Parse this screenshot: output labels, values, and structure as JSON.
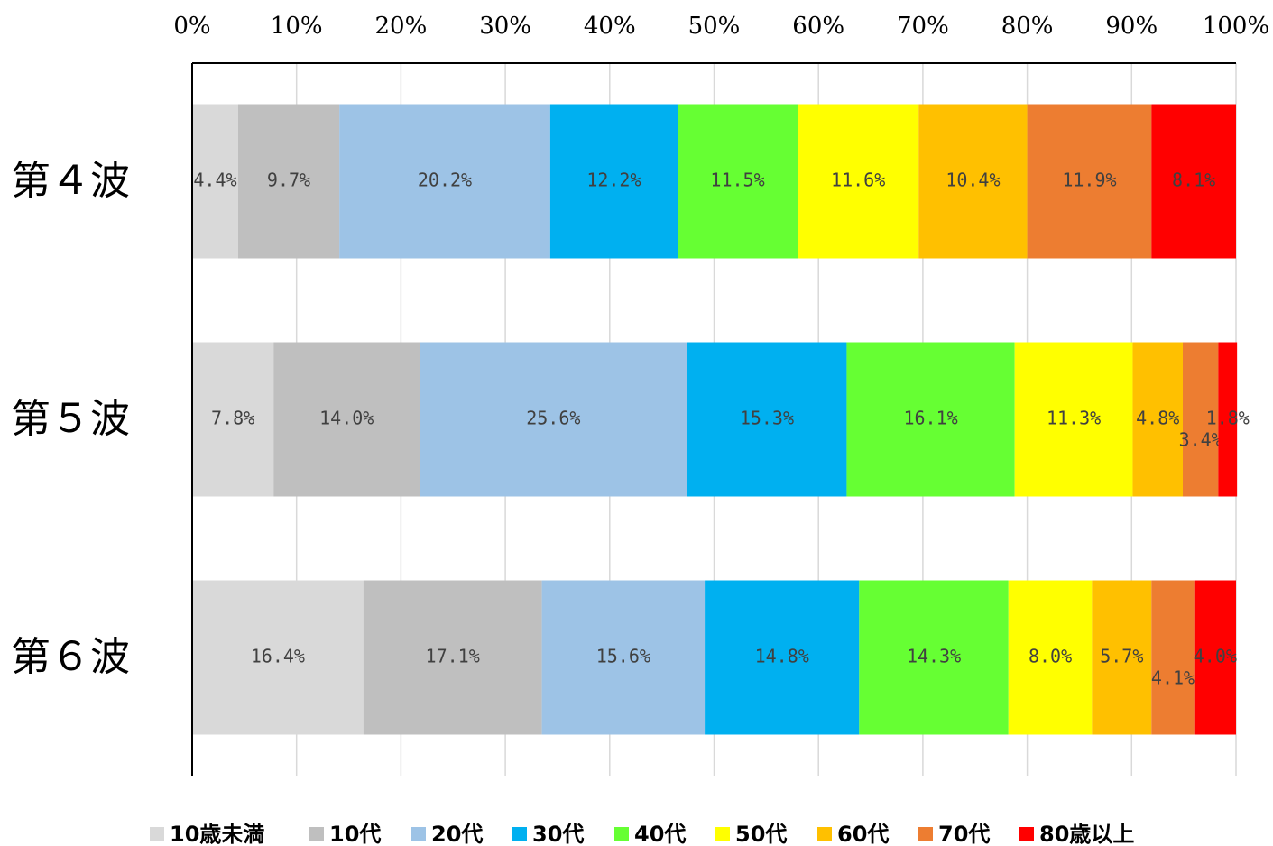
{
  "chart_data": {
    "type": "stacked_barh",
    "categories": [
      "第４波",
      "第５波",
      "第６波"
    ],
    "series": [
      {
        "name": "10歳未満",
        "color": "#d9d9d9",
        "values": [
          4.4,
          7.8,
          16.4
        ],
        "value_labels": [
          "4.4%",
          "7.8%",
          "16.4%"
        ]
      },
      {
        "name": "10代",
        "color": "#bfbfbf",
        "values": [
          9.7,
          14.0,
          17.1
        ],
        "value_labels": [
          "9.7%",
          "14.0%",
          "17.1%"
        ]
      },
      {
        "name": "20代",
        "color": "#9dc3e6",
        "values": [
          20.2,
          25.6,
          15.6
        ],
        "value_labels": [
          "20.2%",
          "25.6%",
          "15.6%"
        ]
      },
      {
        "name": "30代",
        "color": "#00b0f0",
        "values": [
          12.2,
          15.3,
          14.8
        ],
        "value_labels": [
          "12.2%",
          "15.3%",
          "14.8%"
        ]
      },
      {
        "name": "40代",
        "color": "#66ff33",
        "values": [
          11.5,
          16.1,
          14.3
        ],
        "value_labels": [
          "11.5%",
          "16.1%",
          "14.3%"
        ]
      },
      {
        "name": "50代",
        "color": "#ffff00",
        "values": [
          11.6,
          11.3,
          8.0
        ],
        "value_labels": [
          "11.6%",
          "11.3%",
          "8.0%"
        ]
      },
      {
        "name": "60代",
        "color": "#ffc000",
        "values": [
          10.4,
          4.8,
          5.7
        ],
        "value_labels": [
          "10.4%",
          "4.8%",
          "5.7%"
        ]
      },
      {
        "name": "70代",
        "color": "#ed7d31",
        "values": [
          11.9,
          3.4,
          4.1
        ],
        "value_labels": [
          "11.9%",
          "3.4%",
          "4.1%"
        ]
      },
      {
        "name": "80歳以上",
        "color": "#ff0000",
        "values": [
          8.1,
          1.8,
          4.0
        ],
        "value_labels": [
          "8.1%",
          "1.8%",
          "4.0%"
        ]
      }
    ],
    "xlim": [
      0,
      100
    ],
    "xticks": [
      {
        "value": 0,
        "label": "0%"
      },
      {
        "value": 10,
        "label": "10%"
      },
      {
        "value": 20,
        "label": "20%"
      },
      {
        "value": 30,
        "label": "30%"
      },
      {
        "value": 40,
        "label": "40%"
      },
      {
        "value": 50,
        "label": "50%"
      },
      {
        "value": 60,
        "label": "60%"
      },
      {
        "value": 70,
        "label": "70%"
      },
      {
        "value": 80,
        "label": "80%"
      },
      {
        "value": 90,
        "label": "90%"
      },
      {
        "value": 100,
        "label": "100%"
      }
    ],
    "grid": true,
    "legend": "bottom"
  }
}
